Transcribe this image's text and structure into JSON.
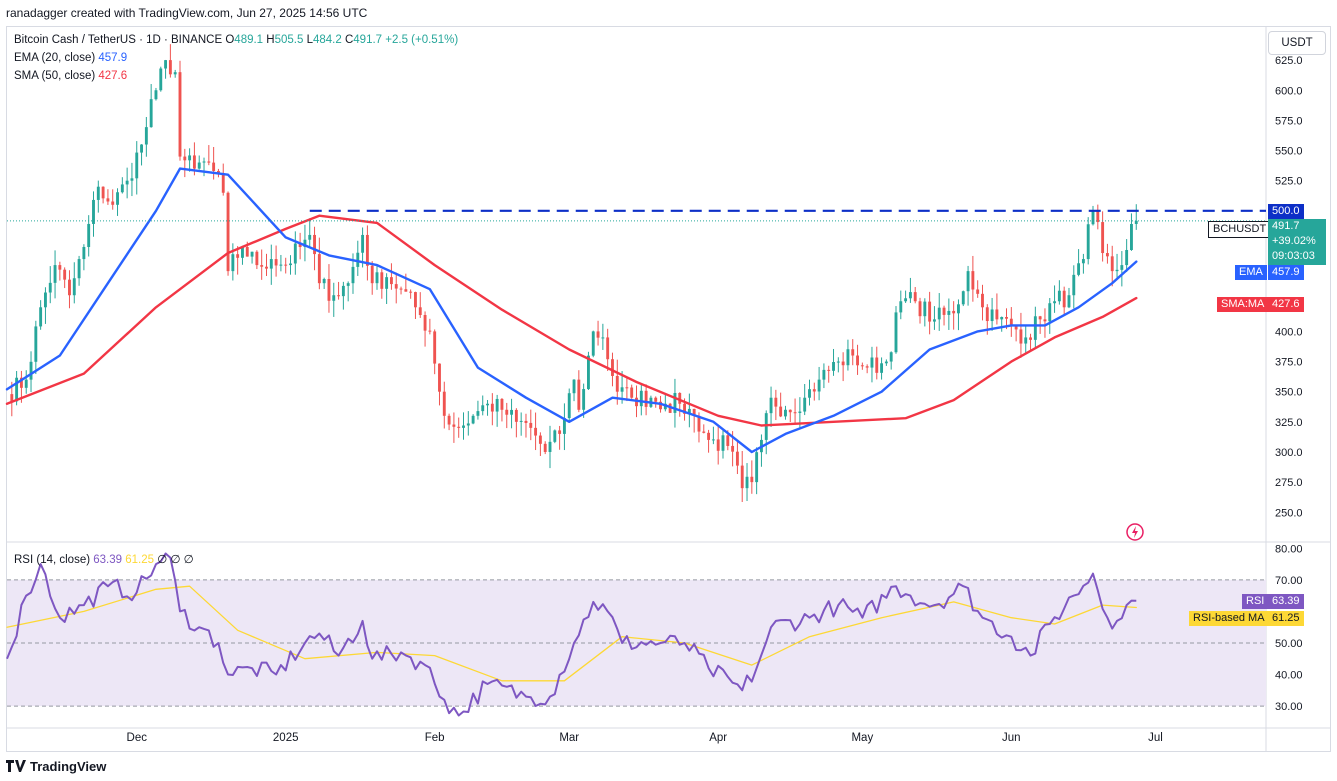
{
  "header": {
    "attribution": "ranadagger created with TradingView.com, Jun 27, 2025 14:56 UTC"
  },
  "legend": {
    "symbol": "Bitcoin Cash / TetherUS · 1D · BINANCE",
    "open_label": "O",
    "open": "489.1",
    "high_label": "H",
    "high": "505.5",
    "low_label": "L",
    "low": "484.2",
    "close_label": "C",
    "close": "491.7",
    "change": "+2.5 (+0.51%)",
    "ema_label": "EMA (20, close)",
    "ema_value": "457.9",
    "sma_label": "SMA (50, close)",
    "sma_value": "427.6",
    "rsi_label": "RSI (14, close)",
    "rsi_value": "63.39",
    "rsi_ma_value": "61.25",
    "rsi_extra": "∅ ∅ ∅"
  },
  "currency_button": "USDT",
  "price_tags": {
    "level_500": "500.0",
    "symbol_tag": "BCHUSDT",
    "last_price": "491.7",
    "change_pct": "+39.02%",
    "countdown": "09:03:03",
    "ema_tag": "EMA",
    "ema_value": "457.9",
    "sma_tag": "SMA:MA",
    "sma_value": "427.6",
    "rsi_tag": "RSI",
    "rsi_value": "63.39",
    "rsi_ma_tag": "RSI-based MA",
    "rsi_ma_value": "61.25"
  },
  "footer": {
    "brand": "TradingView"
  },
  "colors": {
    "up": "#26a69a",
    "down": "#ef5350",
    "ema": "#2962ff",
    "sma": "#f23645",
    "rsi": "#7e57c2",
    "rsi_ma": "#fdd835",
    "level_line": "#0d2fc7",
    "rsi_band": "#ede7f6"
  },
  "chart_data": [
    {
      "type": "candlestick",
      "title": "Bitcoin Cash / TetherUS · 1D · BINANCE",
      "unit": "USDT",
      "y_ticks": [
        250,
        275,
        300,
        325,
        350,
        375,
        400,
        425,
        450,
        475,
        500,
        525,
        550,
        575,
        600,
        625
      ],
      "y_tick_labels": [
        "250.0",
        "275.0",
        "300.0",
        "325.0",
        "350.0",
        "375.0",
        "400.0",
        "",
        "",
        "",
        "",
        "525.0",
        "550.0",
        "575.0",
        "600.0",
        "625.0"
      ],
      "ylim": [
        227,
        645
      ],
      "x_tick_labels": [
        "Dec",
        "2025",
        "Feb",
        "Mar",
        "Apr",
        "May",
        "Jun",
        "Jul"
      ],
      "x_tick_dates": [
        "2024-12-01",
        "2025-01-01",
        "2025-02-01",
        "2025-03-01",
        "2025-04-01",
        "2025-05-01",
        "2025-06-01",
        "2025-07-01"
      ],
      "x_range": [
        "2024-11-04",
        "2025-07-24"
      ],
      "horizontal_level": 500,
      "candle_anchors": [
        [
          "2024-11-04",
          348
        ],
        [
          "2024-11-08",
          360
        ],
        [
          "2024-11-11",
          420
        ],
        [
          "2024-11-14",
          455
        ],
        [
          "2024-11-17",
          430
        ],
        [
          "2024-11-20",
          470
        ],
        [
          "2024-11-23",
          520
        ],
        [
          "2024-11-26",
          505
        ],
        [
          "2024-11-29",
          525
        ],
        [
          "2024-12-02",
          555
        ],
        [
          "2024-12-05",
          600
        ],
        [
          "2024-12-07",
          625
        ],
        [
          "2024-12-09",
          615
        ],
        [
          "2024-12-10",
          545
        ],
        [
          "2024-12-13",
          535
        ],
        [
          "2024-12-16",
          540
        ],
        [
          "2024-12-19",
          515
        ],
        [
          "2024-12-20",
          450
        ],
        [
          "2024-12-23",
          470
        ],
        [
          "2024-12-26",
          455
        ],
        [
          "2024-12-29",
          460
        ],
        [
          "2025-01-01",
          455
        ],
        [
          "2025-01-04",
          470
        ],
        [
          "2025-01-06",
          480
        ],
        [
          "2025-01-08",
          440
        ],
        [
          "2025-01-11",
          430
        ],
        [
          "2025-01-14",
          440
        ],
        [
          "2025-01-17",
          480
        ],
        [
          "2025-01-19",
          440
        ],
        [
          "2025-01-22",
          445
        ],
        [
          "2025-01-25",
          435
        ],
        [
          "2025-01-28",
          420
        ],
        [
          "2025-01-31",
          400
        ],
        [
          "2025-02-02",
          350
        ],
        [
          "2025-02-03",
          330
        ],
        [
          "2025-02-06",
          320
        ],
        [
          "2025-02-09",
          330
        ],
        [
          "2025-02-12",
          340
        ],
        [
          "2025-02-15",
          335
        ],
        [
          "2025-02-18",
          325
        ],
        [
          "2025-02-21",
          320
        ],
        [
          "2025-02-24",
          300
        ],
        [
          "2025-02-27",
          315
        ],
        [
          "2025-03-02",
          360
        ],
        [
          "2025-03-03",
          335
        ],
        [
          "2025-03-06",
          400
        ],
        [
          "2025-03-08",
          395
        ],
        [
          "2025-03-11",
          350
        ],
        [
          "2025-03-14",
          345
        ],
        [
          "2025-03-18",
          345
        ],
        [
          "2025-03-21",
          340
        ],
        [
          "2025-03-24",
          340
        ],
        [
          "2025-03-27",
          330
        ],
        [
          "2025-03-30",
          310
        ],
        [
          "2025-04-03",
          305
        ],
        [
          "2025-04-06",
          270
        ],
        [
          "2025-04-08",
          275
        ],
        [
          "2025-04-10",
          310
        ],
        [
          "2025-04-12",
          345
        ],
        [
          "2025-04-15",
          335
        ],
        [
          "2025-04-19",
          345
        ],
        [
          "2025-04-22",
          360
        ],
        [
          "2025-04-26",
          375
        ],
        [
          "2025-04-29",
          380
        ],
        [
          "2025-05-02",
          370
        ],
        [
          "2025-05-06",
          375
        ],
        [
          "2025-05-09",
          425
        ],
        [
          "2025-05-12",
          425
        ],
        [
          "2025-05-16",
          410
        ],
        [
          "2025-05-20",
          415
        ],
        [
          "2025-05-23",
          450
        ],
        [
          "2025-05-26",
          420
        ],
        [
          "2025-05-29",
          410
        ],
        [
          "2025-06-01",
          405
        ],
        [
          "2025-06-04",
          395
        ],
        [
          "2025-06-07",
          410
        ],
        [
          "2025-06-10",
          425
        ],
        [
          "2025-06-13",
          430
        ],
        [
          "2025-06-16",
          460
        ],
        [
          "2025-06-18",
          500
        ],
        [
          "2025-06-20",
          465
        ],
        [
          "2025-06-22",
          450
        ],
        [
          "2025-06-24",
          455
        ],
        [
          "2025-06-26",
          489.1
        ],
        [
          "2025-06-27",
          491.7
        ]
      ],
      "last_candle": {
        "open": 489.1,
        "high": 505.5,
        "low": 484.2,
        "close": 491.7
      },
      "ema20_anchors": [
        [
          "2024-11-04",
          352
        ],
        [
          "2024-11-15",
          380
        ],
        [
          "2024-11-25",
          440
        ],
        [
          "2024-12-05",
          500
        ],
        [
          "2024-12-10",
          535
        ],
        [
          "2024-12-20",
          530
        ],
        [
          "2025-01-01",
          478
        ],
        [
          "2025-01-10",
          463
        ],
        [
          "2025-01-20",
          455
        ],
        [
          "2025-01-31",
          435
        ],
        [
          "2025-02-10",
          370
        ],
        [
          "2025-02-20",
          345
        ],
        [
          "2025-03-01",
          325
        ],
        [
          "2025-03-10",
          345
        ],
        [
          "2025-03-20",
          340
        ],
        [
          "2025-03-31",
          325
        ],
        [
          "2025-04-08",
          300
        ],
        [
          "2025-04-15",
          315
        ],
        [
          "2025-04-25",
          330
        ],
        [
          "2025-05-05",
          350
        ],
        [
          "2025-05-15",
          385
        ],
        [
          "2025-05-25",
          400
        ],
        [
          "2025-06-01",
          405
        ],
        [
          "2025-06-08",
          405
        ],
        [
          "2025-06-15",
          420
        ],
        [
          "2025-06-22",
          440
        ],
        [
          "2025-06-27",
          457.9
        ]
      ],
      "sma50_anchors": [
        [
          "2024-11-04",
          340
        ],
        [
          "2024-11-20",
          365
        ],
        [
          "2024-12-05",
          420
        ],
        [
          "2024-12-20",
          465
        ],
        [
          "2025-01-01",
          485
        ],
        [
          "2025-01-08",
          496
        ],
        [
          "2025-01-20",
          490
        ],
        [
          "2025-02-01",
          455
        ],
        [
          "2025-02-15",
          418
        ],
        [
          "2025-03-01",
          385
        ],
        [
          "2025-03-15",
          358
        ],
        [
          "2025-04-01",
          330
        ],
        [
          "2025-04-10",
          322
        ],
        [
          "2025-04-25",
          325
        ],
        [
          "2025-05-10",
          328
        ],
        [
          "2025-05-20",
          343
        ],
        [
          "2025-06-01",
          375
        ],
        [
          "2025-06-10",
          395
        ],
        [
          "2025-06-20",
          412
        ],
        [
          "2025-06-27",
          427.6
        ]
      ],
      "legend": [
        "EMA (20, close)",
        "SMA (50, close)"
      ]
    },
    {
      "type": "line",
      "title": "RSI (14, close)",
      "y_ticks": [
        30,
        40,
        50,
        60,
        70,
        80
      ],
      "y_tick_labels": [
        "30.00",
        "40.00",
        "50.00",
        "",
        "70.00",
        "80.00"
      ],
      "ylim": [
        24,
        82
      ],
      "band": [
        30,
        70
      ],
      "midline": 50,
      "rsi_anchors": [
        [
          "2024-11-04",
          45
        ],
        [
          "2024-11-08",
          65
        ],
        [
          "2024-11-11",
          75
        ],
        [
          "2024-11-15",
          58
        ],
        [
          "2024-11-20",
          62
        ],
        [
          "2024-11-25",
          68
        ],
        [
          "2024-12-01",
          66
        ],
        [
          "2024-12-05",
          75
        ],
        [
          "2024-12-08",
          77
        ],
        [
          "2024-12-10",
          60
        ],
        [
          "2024-12-14",
          55
        ],
        [
          "2024-12-18",
          50
        ],
        [
          "2024-12-20",
          40
        ],
        [
          "2024-12-25",
          42
        ],
        [
          "2024-12-30",
          40
        ],
        [
          "2025-01-05",
          50
        ],
        [
          "2025-01-08",
          53
        ],
        [
          "2025-01-12",
          46
        ],
        [
          "2025-01-17",
          57
        ],
        [
          "2025-01-19",
          45
        ],
        [
          "2025-01-25",
          47
        ],
        [
          "2025-01-30",
          43
        ],
        [
          "2025-02-03",
          32
        ],
        [
          "2025-02-06",
          27
        ],
        [
          "2025-02-12",
          37
        ],
        [
          "2025-02-20",
          33
        ],
        [
          "2025-02-25",
          33
        ],
        [
          "2025-03-02",
          50
        ],
        [
          "2025-03-06",
          63
        ],
        [
          "2025-03-09",
          60
        ],
        [
          "2025-03-12",
          50
        ],
        [
          "2025-03-20",
          50
        ],
        [
          "2025-03-25",
          50
        ],
        [
          "2025-03-30",
          42
        ],
        [
          "2025-04-06",
          35
        ],
        [
          "2025-04-09",
          42
        ],
        [
          "2025-04-12",
          55
        ],
        [
          "2025-04-20",
          58
        ],
        [
          "2025-04-26",
          62
        ],
        [
          "2025-05-01",
          58
        ],
        [
          "2025-05-08",
          68
        ],
        [
          "2025-05-11",
          65
        ],
        [
          "2025-05-16",
          62
        ],
        [
          "2025-05-22",
          68
        ],
        [
          "2025-05-26",
          58
        ],
        [
          "2025-06-01",
          52
        ],
        [
          "2025-06-05",
          46
        ],
        [
          "2025-06-09",
          56
        ],
        [
          "2025-06-14",
          65
        ],
        [
          "2025-06-18",
          72
        ],
        [
          "2025-06-21",
          58
        ],
        [
          "2025-06-23",
          57
        ],
        [
          "2025-06-25",
          62
        ],
        [
          "2025-06-27",
          63.39
        ]
      ],
      "rsi_ma_anchors": [
        [
          "2024-11-04",
          55
        ],
        [
          "2024-11-20",
          60
        ],
        [
          "2024-12-05",
          67
        ],
        [
          "2024-12-12",
          68
        ],
        [
          "2024-12-22",
          54
        ],
        [
          "2025-01-05",
          45
        ],
        [
          "2025-01-20",
          47
        ],
        [
          "2025-02-01",
          46
        ],
        [
          "2025-02-15",
          38
        ],
        [
          "2025-02-28",
          38
        ],
        [
          "2025-03-12",
          52
        ],
        [
          "2025-03-25",
          50
        ],
        [
          "2025-04-08",
          43
        ],
        [
          "2025-04-20",
          52
        ],
        [
          "2025-05-05",
          58
        ],
        [
          "2025-05-20",
          63
        ],
        [
          "2025-06-01",
          58
        ],
        [
          "2025-06-10",
          56
        ],
        [
          "2025-06-20",
          62
        ],
        [
          "2025-06-27",
          61.25
        ]
      ],
      "legend": [
        "RSI (14, close)",
        "RSI-based MA"
      ]
    }
  ]
}
